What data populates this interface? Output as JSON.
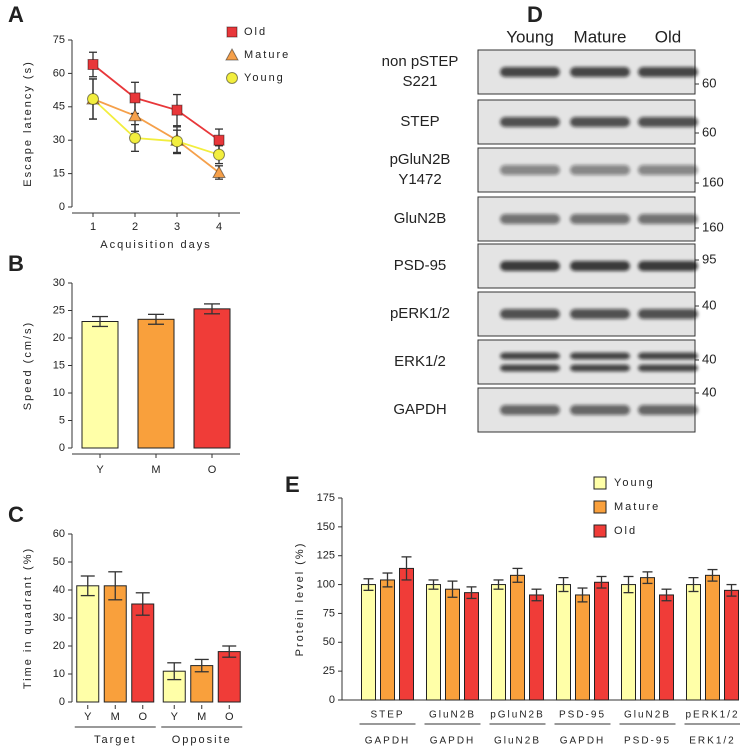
{
  "chart_data": [
    {
      "type": "line",
      "panel": "A",
      "y_label": "Escape latency (s)",
      "x_label": "Acquisition days",
      "x": [
        1,
        2,
        3,
        4
      ],
      "xlim": [
        0.5,
        4.5
      ],
      "xticks": [
        1,
        2,
        3,
        4
      ],
      "ylim": [
        0,
        75
      ],
      "yticks": [
        0,
        15,
        30,
        45,
        60,
        75
      ],
      "series": [
        {
          "name": "Old",
          "color": "#e8373a",
          "marker": "square",
          "values": [
            64,
            49,
            43.5,
            30
          ],
          "errors": [
            5.5,
            7,
            7,
            5
          ]
        },
        {
          "name": "Mature",
          "color": "#f5a04a",
          "marker": "triangle",
          "values": [
            48.5,
            41,
            30,
            15.5
          ],
          "errors": [
            9,
            7,
            6,
            3
          ]
        },
        {
          "name": "Young",
          "color": "#f2ee3e",
          "marker": "circle",
          "values": [
            48.5,
            31,
            29.5,
            23.5
          ],
          "errors": [
            9,
            6,
            5,
            4
          ]
        }
      ]
    },
    {
      "type": "bar",
      "panel": "B",
      "y_label": "Speed (cm/s)",
      "categories": [
        "Y",
        "M",
        "O"
      ],
      "values": [
        23,
        23.4,
        25.3
      ],
      "errors": [
        0.9,
        0.9,
        0.9
      ],
      "colors": [
        "#ffffa8",
        "#f9a03c",
        "#f03c38"
      ],
      "ylim": [
        0,
        30
      ],
      "yticks": [
        0,
        5,
        10,
        15,
        20,
        25,
        30
      ]
    },
    {
      "type": "grouped_bar",
      "panel": "C",
      "y_label": "Time in quadrant (%)",
      "categories": [
        "Target",
        "Opposite"
      ],
      "series": [
        {
          "name": "Y",
          "color": "#ffffa8",
          "values": [
            41.5,
            11
          ],
          "errors": [
            3.5,
            3
          ]
        },
        {
          "name": "M",
          "color": "#f9a03c",
          "values": [
            41.5,
            13
          ],
          "errors": [
            5,
            2.2
          ]
        },
        {
          "name": "O",
          "color": "#f03c38",
          "values": [
            35,
            18
          ],
          "errors": [
            4,
            2
          ]
        }
      ],
      "ylim": [
        0,
        60
      ],
      "yticks": [
        0,
        10,
        20,
        30,
        40,
        50,
        60
      ]
    },
    {
      "type": "grouped_bar",
      "panel": "E",
      "y_label": "Protein level (%)",
      "categories": [
        "STEP",
        "GluN2B",
        "pGluN2B",
        "PSD-95",
        "GluN2B",
        "pERK1/2"
      ],
      "denominators": [
        "GAPDH",
        "GAPDH",
        "GluN2B",
        "GAPDH",
        "PSD-95",
        "ERK1/2"
      ],
      "legend": true,
      "series": [
        {
          "name": "Young",
          "color": "#ffffa8",
          "values": [
            100,
            100,
            100,
            100,
            100,
            100
          ],
          "errors": [
            5,
            4,
            4,
            6,
            7,
            6
          ]
        },
        {
          "name": "Mature",
          "color": "#f9a03c",
          "values": [
            104,
            96,
            108,
            91,
            106,
            108
          ],
          "errors": [
            6,
            7,
            6,
            6,
            5,
            5
          ]
        },
        {
          "name": "Old",
          "color": "#f03c38",
          "values": [
            114,
            93,
            91,
            102,
            91,
            95
          ],
          "errors": [
            10,
            5,
            5,
            5,
            5,
            5
          ]
        }
      ],
      "ylim": [
        0,
        175
      ],
      "yticks": [
        0,
        25,
        50,
        75,
        100,
        125,
        150,
        175
      ]
    }
  ],
  "blot": {
    "panel": "D",
    "columns": [
      "Young",
      "Mature",
      "Old"
    ],
    "rows": [
      {
        "label": [
          "non pSTEP",
          "S221"
        ],
        "mw": 60
      },
      {
        "label": [
          "STEP"
        ],
        "mw": 60
      },
      {
        "label": [
          "pGluN2B",
          "Y1472"
        ],
        "mw": 160
      },
      {
        "label": [
          "GluN2B"
        ],
        "mw": 160
      },
      {
        "label": [
          "PSD-95"
        ],
        "mw": 95
      },
      {
        "label": [
          "pERK1/2"
        ],
        "mw": 40
      },
      {
        "label": [
          "ERK1/2"
        ],
        "mw": 40
      },
      {
        "label": [
          "GAPDH"
        ],
        "mw": 40
      }
    ]
  }
}
